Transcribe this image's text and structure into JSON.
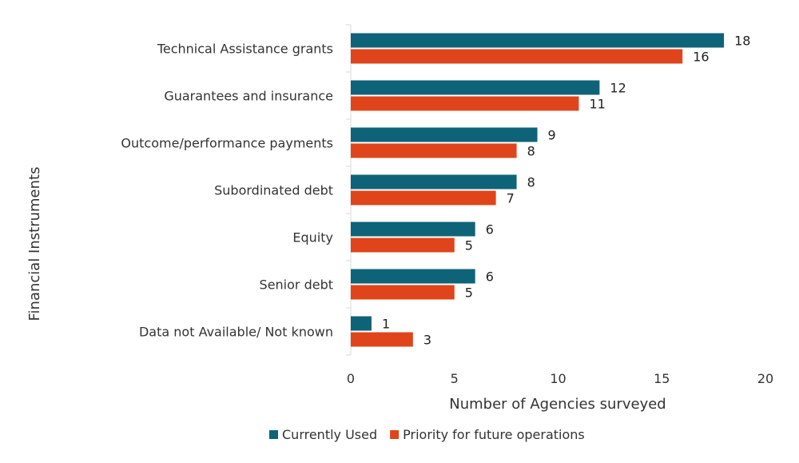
{
  "chart_data": {
    "type": "bar",
    "orientation": "horizontal",
    "categories": [
      "Technical Assistance grants",
      "Guarantees and insurance",
      "Outcome/performance payments",
      "Subordinated debt",
      "Equity",
      "Senior debt",
      "Data not Available/ Not known"
    ],
    "series": [
      {
        "name": "Currently Used",
        "color": "#0f6378",
        "values": [
          18,
          12,
          9,
          8,
          6,
          6,
          1
        ]
      },
      {
        "name": "Priority for future operations",
        "color": "#e0441b",
        "values": [
          16,
          11,
          8,
          7,
          5,
          5,
          3
        ]
      }
    ],
    "xlabel": "Number of Agencies surveyed",
    "ylabel": "Financial Instruments",
    "xlim": [
      0,
      20
    ],
    "xticks": [
      0,
      5,
      10,
      15,
      20
    ],
    "grid": false,
    "legend_position": "bottom"
  }
}
